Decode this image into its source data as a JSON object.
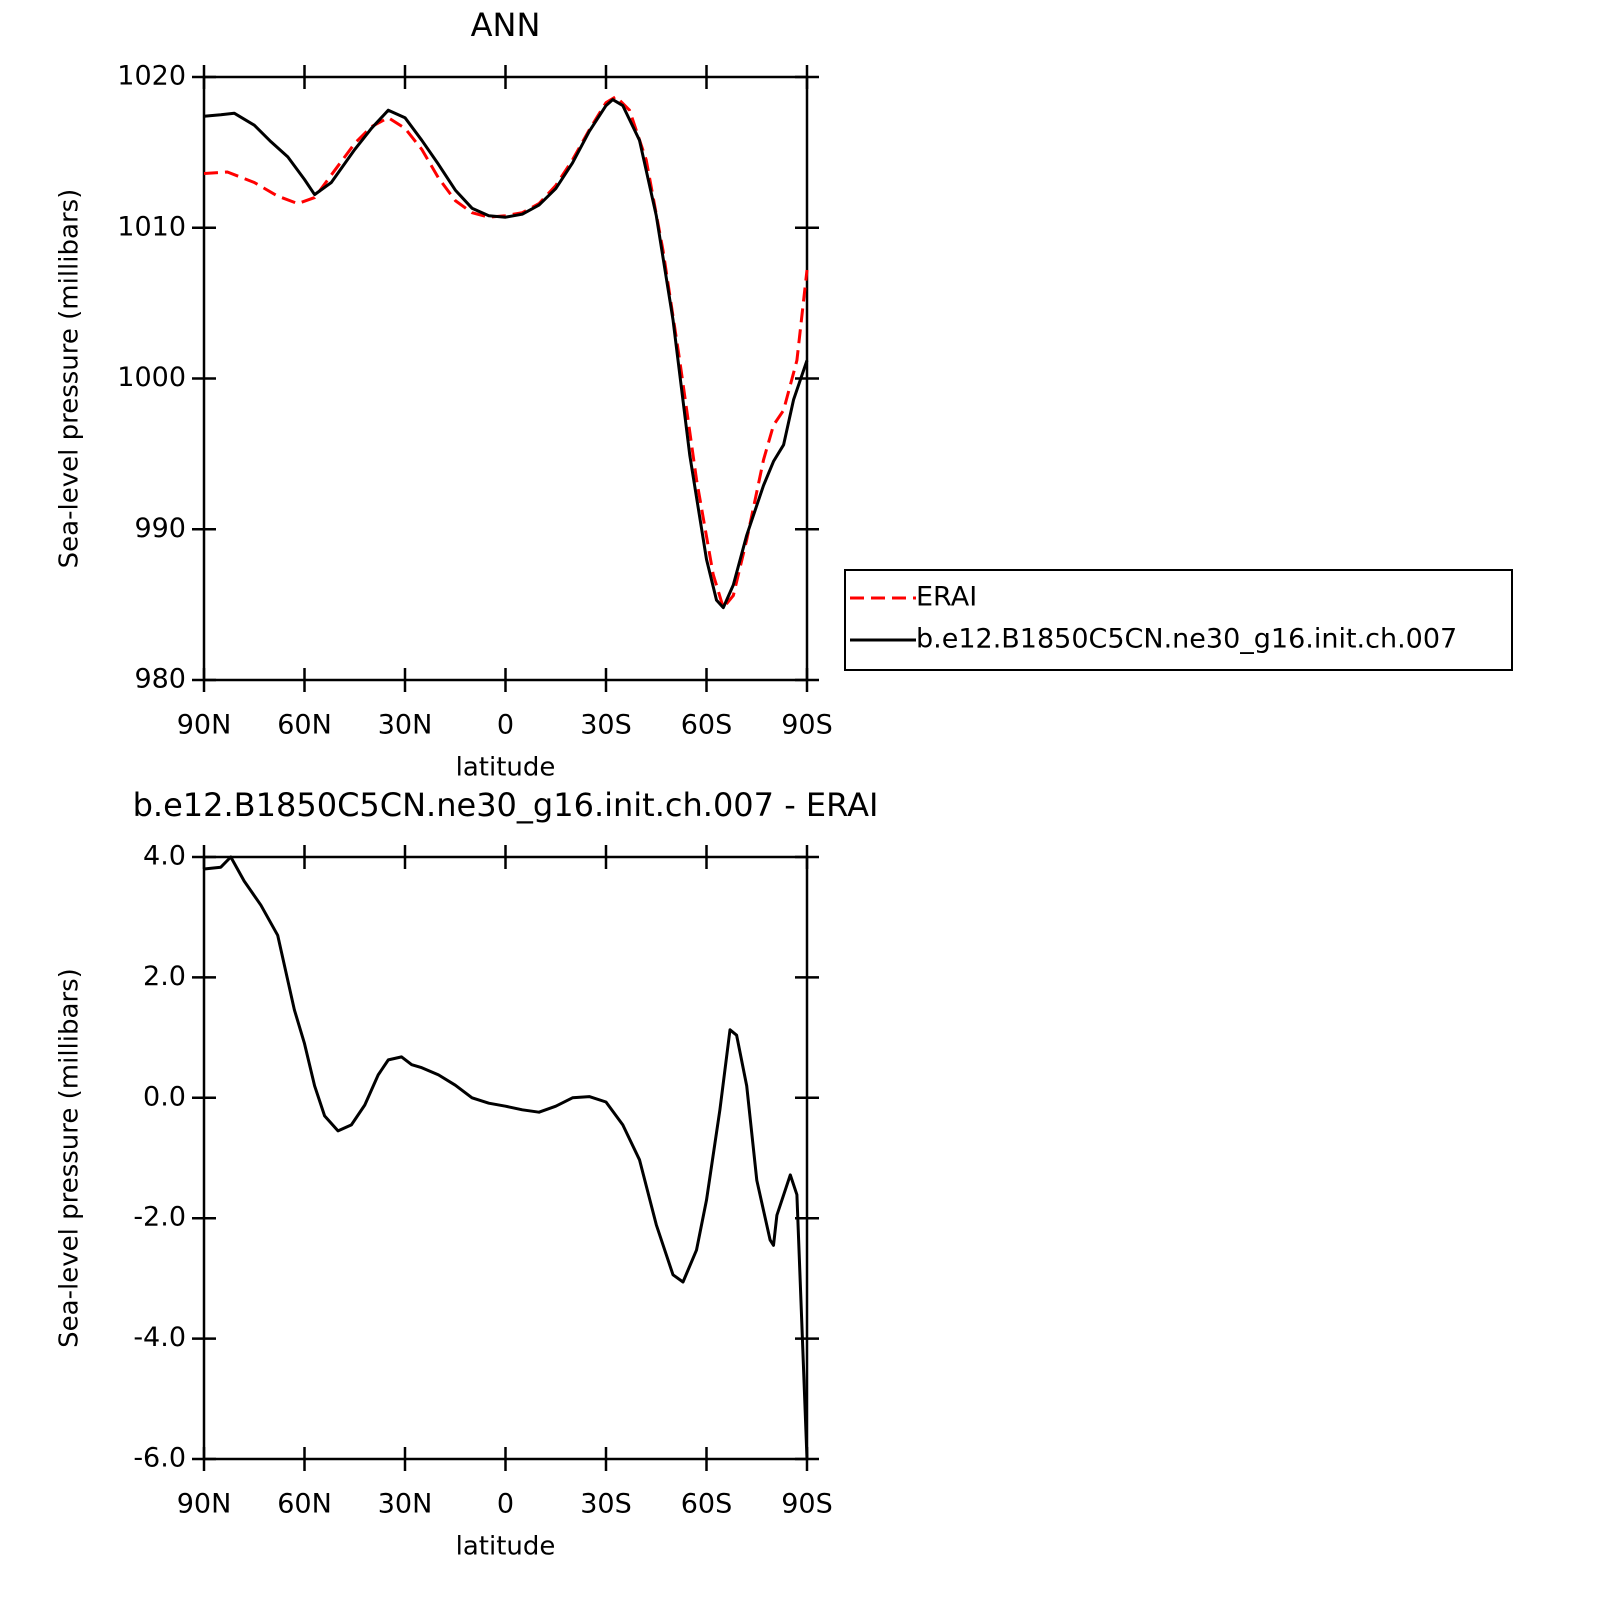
{
  "chart_data": [
    {
      "type": "line",
      "title": "ANN",
      "xlabel": "latitude",
      "ylabel": "Sea-level pressure (millibars)",
      "xlim": [
        90,
        -90
      ],
      "xticks": [
        {
          "value": 90,
          "label": "90N"
        },
        {
          "value": 60,
          "label": "60N"
        },
        {
          "value": 30,
          "label": "30N"
        },
        0,
        {
          "value": -30,
          "label": "30S"
        },
        {
          "value": -60,
          "label": "60S"
        },
        {
          "value": -90,
          "label": "90S"
        }
      ],
      "ylim": [
        980,
        1020
      ],
      "yticks": [
        980,
        990,
        1000,
        1010,
        1020
      ],
      "legend": "right",
      "series": [
        {
          "name": "ERAI",
          "color": "#ff0000",
          "line_style": "dashed",
          "x": [
            90,
            83,
            75,
            68,
            62,
            57,
            52,
            45,
            40,
            35,
            30,
            25,
            20,
            15,
            10,
            5,
            0,
            -5,
            -10,
            -15,
            -20,
            -25,
            -30,
            -33,
            -37,
            -42,
            -47,
            -52,
            -57,
            -62,
            -65,
            -68,
            -72,
            -77,
            -80,
            -83,
            -87,
            -90
          ],
          "values": [
            1013.6,
            1013.7,
            1013.0,
            1012.1,
            1011.6,
            1012.0,
            1013.5,
            1015.6,
            1016.7,
            1017.3,
            1016.6,
            1015.2,
            1013.3,
            1011.8,
            1011.0,
            1010.7,
            1010.8,
            1011.0,
            1011.6,
            1012.8,
            1014.5,
            1016.5,
            1018.3,
            1018.7,
            1017.8,
            1014.5,
            1008.5,
            1001.2,
            993.3,
            987.0,
            984.8,
            985.6,
            989.3,
            994.6,
            996.9,
            997.9,
            1001.2,
            1007.2
          ]
        },
        {
          "name": "b.e12.B1850C5CN.ne30_g16.init.ch.007",
          "color": "#000000",
          "line_style": "solid",
          "x": [
            90,
            85,
            81,
            75,
            70,
            65,
            60,
            57,
            52,
            45,
            40,
            35,
            30,
            25,
            20,
            15,
            10,
            5,
            0,
            -5,
            -10,
            -15,
            -20,
            -25,
            -30,
            -32,
            -35,
            -40,
            -45,
            -50,
            -55,
            -60,
            -63,
            -65,
            -68,
            -72,
            -77,
            -80,
            -83,
            -86,
            -90
          ],
          "values": [
            1017.4,
            1017.5,
            1017.6,
            1016.8,
            1015.7,
            1014.7,
            1013.2,
            1012.2,
            1013.0,
            1015.2,
            1016.6,
            1017.8,
            1017.3,
            1015.8,
            1014.2,
            1012.5,
            1011.3,
            1010.8,
            1010.7,
            1010.9,
            1011.5,
            1012.6,
            1014.3,
            1016.4,
            1018.1,
            1018.5,
            1018.1,
            1015.8,
            1010.8,
            1003.9,
            994.9,
            988.0,
            985.3,
            984.8,
            986.3,
            989.6,
            992.9,
            994.5,
            995.6,
            998.6,
            1001.2
          ]
        }
      ]
    },
    {
      "type": "line",
      "title": "b.e12.B1850C5CN.ne30_g16.init.ch.007 - ERAI",
      "xlabel": "latitude",
      "ylabel": "Sea-level pressure (millibars)",
      "xlim": [
        90,
        -90
      ],
      "xticks": [
        {
          "value": 90,
          "label": "90N"
        },
        {
          "value": 60,
          "label": "60N"
        },
        {
          "value": 30,
          "label": "30N"
        },
        0,
        {
          "value": -30,
          "label": "30S"
        },
        {
          "value": -60,
          "label": "60S"
        },
        {
          "value": -90,
          "label": "90S"
        }
      ],
      "ylim": [
        -6,
        4
      ],
      "yticks": [
        {
          "value": -6,
          "label": "-6.0"
        },
        {
          "value": -4,
          "label": "-4.0"
        },
        {
          "value": -2,
          "label": "-2.0"
        },
        {
          "value": 0,
          "label": "0.0"
        },
        {
          "value": 2,
          "label": "2.0"
        },
        {
          "value": 4,
          "label": "4.0"
        }
      ],
      "series": [
        {
          "color": "#000000",
          "line_style": "solid",
          "x": [
            90,
            85,
            82,
            78,
            73,
            68,
            63,
            60,
            57,
            54,
            50,
            46,
            42,
            38,
            35,
            31,
            28,
            25,
            20,
            15,
            10,
            5,
            0,
            -5,
            -10,
            -15,
            -20,
            -25,
            -30,
            -35,
            -40,
            -45,
            -50,
            -53,
            -57,
            -60,
            -64,
            -67,
            -69,
            -72,
            -75,
            -79,
            -80,
            -81,
            -85,
            -87,
            -90
          ],
          "values": [
            3.8,
            3.83,
            4.0,
            3.6,
            3.2,
            2.7,
            1.46,
            0.9,
            0.2,
            -0.3,
            -0.55,
            -0.45,
            -0.12,
            0.38,
            0.63,
            0.68,
            0.55,
            0.5,
            0.38,
            0.21,
            0.0,
            -0.09,
            -0.14,
            -0.2,
            -0.24,
            -0.14,
            0.0,
            0.02,
            -0.07,
            -0.45,
            -1.03,
            -2.11,
            -2.94,
            -3.06,
            -2.53,
            -1.7,
            -0.2,
            1.13,
            1.04,
            0.2,
            -1.37,
            -2.36,
            -2.45,
            -1.95,
            -1.28,
            -1.61,
            -6.0
          ]
        }
      ]
    }
  ]
}
